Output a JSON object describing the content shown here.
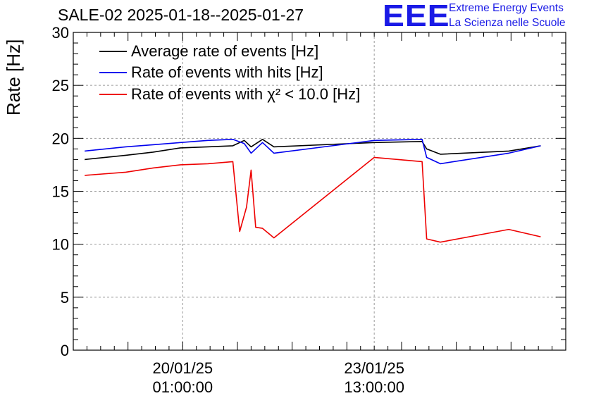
{
  "title": "SALE-02 2025-01-18--2025-01-27",
  "logo": {
    "mark": "EEE",
    "line1": "Extreme Energy Events",
    "line2": "La Scienza nelle Scuole",
    "color": "#1a1ae6"
  },
  "chart_data": {
    "type": "line",
    "ylabel": "Rate [Hz]",
    "ylim": [
      0,
      30
    ],
    "yticks": [
      "0",
      "5",
      "10",
      "15",
      "20",
      "25",
      "30"
    ],
    "xlim": [
      "2025-01-18T01:00",
      "2025-01-27T01:00"
    ],
    "xticks": [
      {
        "t": "2025-01-20T01:00",
        "date": "20/01/25",
        "time": "01:00:00"
      },
      {
        "t": "2025-01-23T13:00",
        "date": "23/01/25",
        "time": "13:00:00"
      }
    ],
    "grid": true,
    "legend": "top-left",
    "series": [
      {
        "name": "Average rate of events [Hz]",
        "color": "#000000",
        "points": [
          [
            "2025-01-18T06:00",
            18.0
          ],
          [
            "2025-01-19T00:00",
            18.4
          ],
          [
            "2025-01-19T12:00",
            18.7
          ],
          [
            "2025-01-20T00:00",
            19.1
          ],
          [
            "2025-01-20T12:00",
            19.2
          ],
          [
            "2025-01-20T23:00",
            19.3
          ],
          [
            "2025-01-21T04:00",
            19.8
          ],
          [
            "2025-01-21T07:00",
            19.2
          ],
          [
            "2025-01-21T12:00",
            19.9
          ],
          [
            "2025-01-21T17:00",
            19.2
          ],
          [
            "2025-01-23T13:00",
            19.6
          ],
          [
            "2025-01-24T10:00",
            19.7
          ],
          [
            "2025-01-24T12:00",
            19.0
          ],
          [
            "2025-01-24T18:00",
            18.5
          ],
          [
            "2025-01-26T00:00",
            18.8
          ],
          [
            "2025-01-26T14:00",
            19.3
          ]
        ]
      },
      {
        "name": "Rate of events with hits [Hz]",
        "color": "#0000ee",
        "points": [
          [
            "2025-01-18T06:00",
            18.8
          ],
          [
            "2025-01-19T00:00",
            19.2
          ],
          [
            "2025-01-19T12:00",
            19.4
          ],
          [
            "2025-01-20T00:00",
            19.6
          ],
          [
            "2025-01-20T12:00",
            19.8
          ],
          [
            "2025-01-20T23:00",
            19.9
          ],
          [
            "2025-01-21T04:00",
            19.5
          ],
          [
            "2025-01-21T07:00",
            18.6
          ],
          [
            "2025-01-21T12:00",
            19.6
          ],
          [
            "2025-01-21T17:00",
            18.6
          ],
          [
            "2025-01-23T13:00",
            19.8
          ],
          [
            "2025-01-24T10:00",
            19.9
          ],
          [
            "2025-01-24T12:00",
            18.2
          ],
          [
            "2025-01-24T18:00",
            17.6
          ],
          [
            "2025-01-26T00:00",
            18.6
          ],
          [
            "2025-01-26T14:00",
            19.3
          ]
        ]
      },
      {
        "name": "Rate of events with χ² < 10.0 [Hz]",
        "color": "#ee0000",
        "points": [
          [
            "2025-01-18T06:00",
            16.5
          ],
          [
            "2025-01-19T00:00",
            16.8
          ],
          [
            "2025-01-19T12:00",
            17.2
          ],
          [
            "2025-01-20T00:00",
            17.5
          ],
          [
            "2025-01-20T12:00",
            17.6
          ],
          [
            "2025-01-20T23:00",
            17.8
          ],
          [
            "2025-01-21T02:00",
            11.2
          ],
          [
            "2025-01-21T05:00",
            13.5
          ],
          [
            "2025-01-21T07:00",
            17.0
          ],
          [
            "2025-01-21T09:00",
            11.6
          ],
          [
            "2025-01-21T12:00",
            11.5
          ],
          [
            "2025-01-21T17:00",
            10.6
          ],
          [
            "2025-01-23T13:00",
            18.2
          ],
          [
            "2025-01-24T10:00",
            17.8
          ],
          [
            "2025-01-24T12:00",
            10.5
          ],
          [
            "2025-01-24T18:00",
            10.2
          ],
          [
            "2025-01-26T00:00",
            11.4
          ],
          [
            "2025-01-26T14:00",
            10.7
          ]
        ]
      }
    ]
  }
}
